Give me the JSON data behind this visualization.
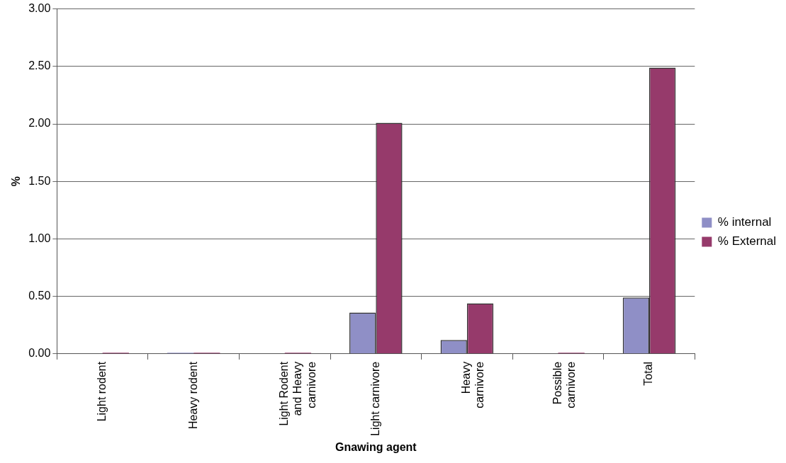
{
  "chart_data": {
    "type": "bar",
    "xlabel": "Gnawing agent",
    "ylabel": "%",
    "categories": [
      "Light rodent",
      "Heavy rodent",
      "Light Rodent and Heavy carnivore",
      "Light carnivore",
      "Heavy carnivore",
      "Possible carnivore",
      "Total"
    ],
    "series": [
      {
        "name": "% internal",
        "color": "#8f8fc6",
        "values": [
          0,
          0.01,
          0,
          0.36,
          0.12,
          0,
          0.49
        ]
      },
      {
        "name": "% External",
        "color": "#963a6b",
        "values": [
          0.01,
          0.01,
          0.01,
          2.01,
          0.44,
          0.01,
          2.49
        ]
      }
    ],
    "ylim": [
      0,
      3
    ],
    "yticks": [
      {
        "value": 0,
        "label": "0.00"
      },
      {
        "value": 0.5,
        "label": "0.50"
      },
      {
        "value": 1,
        "label": "1.00"
      },
      {
        "value": 1.5,
        "label": "1.50"
      },
      {
        "value": 2,
        "label": "2.00"
      },
      {
        "value": 2.5,
        "label": "2.50"
      },
      {
        "value": 3,
        "label": "3.00"
      }
    ],
    "grid": "y",
    "legend": "right"
  }
}
